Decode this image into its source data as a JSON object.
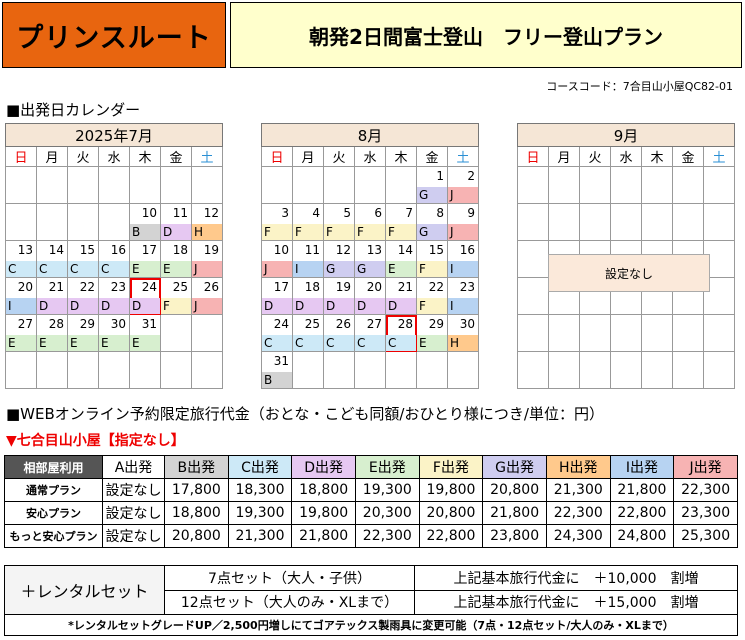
{
  "header": {
    "brand": "プリンスルート",
    "title": "朝発2日間富士登山　フリー登山プラン"
  },
  "course_code": "コースコード：7合目山小屋QC82-01",
  "calendar_heading": "■出発日カレンダー",
  "weekdays": [
    "日",
    "月",
    "火",
    "水",
    "木",
    "金",
    "土"
  ],
  "group_colors": {
    "B": "#d3d3d3",
    "C": "#cde9f7",
    "D": "#e6c8f2",
    "E": "#d7efcf",
    "F": "#fbf3c7",
    "G": "#cfcdf0",
    "H": "#ffc98c",
    "I": "#b7d3f2",
    "J": "#f7b3b3"
  },
  "months": [
    {
      "title": "2025年7月",
      "rows": [
        [
          null,
          null,
          null,
          null,
          null,
          null,
          null
        ],
        [
          null,
          null,
          null,
          null,
          {
            "d": "10",
            "g": "B"
          },
          {
            "d": "11",
            "g": "D"
          },
          {
            "d": "12",
            "g": "H"
          }
        ],
        [
          {
            "d": "13",
            "g": "C"
          },
          {
            "d": "14",
            "g": "C"
          },
          {
            "d": "15",
            "g": "C"
          },
          {
            "d": "16",
            "g": "C"
          },
          {
            "d": "17",
            "g": "E"
          },
          {
            "d": "18",
            "g": "E"
          },
          {
            "d": "19",
            "g": "J"
          }
        ],
        [
          {
            "d": "20",
            "g": "I"
          },
          {
            "d": "21",
            "g": "D"
          },
          {
            "d": "22",
            "g": "D"
          },
          {
            "d": "23",
            "g": "D"
          },
          {
            "d": "24",
            "g": "D",
            "sel": true
          },
          {
            "d": "25",
            "g": "F"
          },
          {
            "d": "26",
            "g": "J"
          }
        ],
        [
          {
            "d": "27",
            "g": "E"
          },
          {
            "d": "28",
            "g": "E"
          },
          {
            "d": "29",
            "g": "E"
          },
          {
            "d": "30",
            "g": "E"
          },
          {
            "d": "31",
            "g": "E"
          },
          null,
          null
        ],
        [
          null,
          null,
          null,
          null,
          null,
          null,
          null
        ]
      ]
    },
    {
      "title": "8月",
      "rows": [
        [
          null,
          null,
          null,
          null,
          null,
          {
            "d": "1",
            "g": "G"
          },
          {
            "d": "2",
            "g": "J"
          }
        ],
        [
          {
            "d": "3",
            "g": "F"
          },
          {
            "d": "4",
            "g": "F"
          },
          {
            "d": "5",
            "g": "F"
          },
          {
            "d": "6",
            "g": "F"
          },
          {
            "d": "7",
            "g": "F"
          },
          {
            "d": "8",
            "g": "G"
          },
          {
            "d": "9",
            "g": "J"
          }
        ],
        [
          {
            "d": "10",
            "g": "J"
          },
          {
            "d": "11",
            "g": "I"
          },
          {
            "d": "12",
            "g": "G"
          },
          {
            "d": "13",
            "g": "G"
          },
          {
            "d": "14",
            "g": "E"
          },
          {
            "d": "15",
            "g": "F"
          },
          {
            "d": "16",
            "g": "I"
          }
        ],
        [
          {
            "d": "17",
            "g": "D"
          },
          {
            "d": "18",
            "g": "D"
          },
          {
            "d": "19",
            "g": "D"
          },
          {
            "d": "20",
            "g": "D"
          },
          {
            "d": "21",
            "g": "D"
          },
          {
            "d": "22",
            "g": "F"
          },
          {
            "d": "23",
            "g": "I"
          }
        ],
        [
          {
            "d": "24",
            "g": "C"
          },
          {
            "d": "25",
            "g": "C"
          },
          {
            "d": "26",
            "g": "C"
          },
          {
            "d": "27",
            "g": "C"
          },
          {
            "d": "28",
            "g": "C",
            "sel": true
          },
          {
            "d": "29",
            "g": "E"
          },
          {
            "d": "30",
            "g": "H"
          }
        ],
        [
          {
            "d": "31",
            "g": "B"
          },
          null,
          null,
          null,
          null,
          null,
          null
        ]
      ]
    },
    {
      "title": "9月",
      "rows": [
        [
          null,
          null,
          null,
          null,
          null,
          null,
          null
        ],
        [
          null,
          null,
          null,
          null,
          null,
          null,
          null
        ],
        [
          null,
          null,
          null,
          null,
          null,
          null,
          null
        ],
        [
          null,
          null,
          null,
          null,
          null,
          null,
          null
        ],
        [
          null,
          null,
          null,
          null,
          null,
          null,
          null
        ],
        [
          null,
          null,
          null,
          null,
          null,
          null,
          null
        ]
      ],
      "note": "設定なし"
    }
  ],
  "price_heading": "■WEBオンライン予約限定旅行代金（おとな・こども同額/おひとり様につき/単位：円）",
  "price_sub": "▼七合目山小屋【指定なし】",
  "price_table": {
    "corner": "相部屋利用",
    "cols": [
      "A出発",
      "B出発",
      "C出発",
      "D出発",
      "E出発",
      "F出発",
      "G出発",
      "H出発",
      "I出発",
      "J出発"
    ],
    "col_colors": [
      "#ffffff",
      "#d3d3d3",
      "#cde9f7",
      "#e6c8f2",
      "#d7efcf",
      "#fbf3c7",
      "#cfcdf0",
      "#ffc98c",
      "#b7d3f2",
      "#f7b3b3"
    ],
    "rows": [
      {
        "label": "通常プラン",
        "values": [
          "設定なし",
          "17,800",
          "18,300",
          "18,800",
          "19,300",
          "19,800",
          "20,800",
          "21,300",
          "21,800",
          "22,300"
        ]
      },
      {
        "label": "安心プラン",
        "values": [
          "設定なし",
          "18,800",
          "19,300",
          "19,800",
          "20,300",
          "20,800",
          "21,800",
          "22,300",
          "22,800",
          "23,300"
        ]
      },
      {
        "label": "もっと安心プラン",
        "values": [
          "設定なし",
          "20,800",
          "21,300",
          "21,800",
          "22,300",
          "22,800",
          "23,800",
          "24,300",
          "24,800",
          "25,300"
        ]
      }
    ]
  },
  "rental": {
    "label": "＋レンタルセット",
    "rows": [
      {
        "item": "7点セット（大人・子供）",
        "price": "上記基本旅行代金に　＋10,000　割増"
      },
      {
        "item": "12点セット（大人のみ・XLまで）",
        "price": "上記基本旅行代金に　＋15,000　割増"
      }
    ]
  },
  "footnote": "*レンタルセットグレードUP／2,500円増しにてゴアテックス製雨具に変更可能（7点・12点セット/大人のみ・XLまで）"
}
